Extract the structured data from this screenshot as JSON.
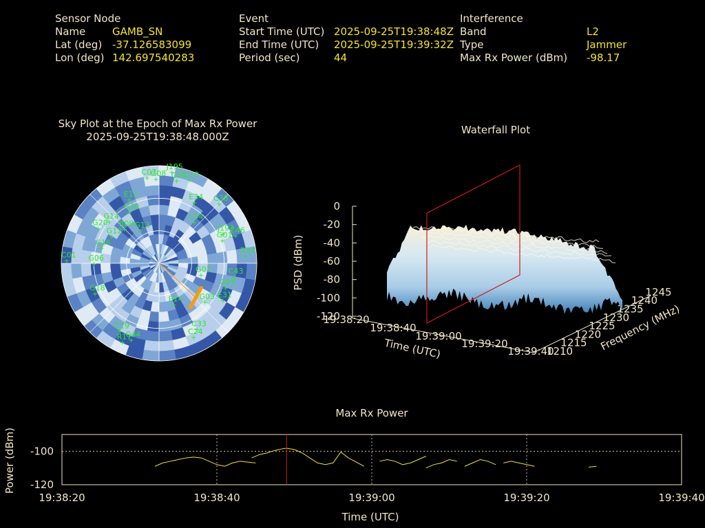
{
  "header": {
    "sensor": {
      "heading": "Sensor Node",
      "name_label": "Name",
      "name": "GAMB_SN",
      "lat_label": "Lat (deg)",
      "lat": "-37.126583099",
      "lon_label": "Lon (deg)",
      "lon": "142.697540283"
    },
    "event": {
      "heading": "Event",
      "start_label": "Start Time (UTC)",
      "start": "2025-09-25T19:38:48Z",
      "end_label": "End Time (UTC)",
      "end": "2025-09-25T19:39:32Z",
      "period_label": "Period (sec)",
      "period": "44"
    },
    "interference": {
      "heading": "Interference",
      "band_label": "Band",
      "band": "L2",
      "type_label": "Type",
      "type": "Jammer",
      "power_label": "Max Rx Power (dBm)",
      "power": "-98.17"
    }
  },
  "skyplot": {
    "title": "Sky Plot at the Epoch of Max Rx Power",
    "subtitle": "2025-09-25T19:38:48.000Z",
    "colors": {
      "heat_light": "#dfeaf5",
      "heat_mid": "#7fa7d6",
      "heat_dark": "#3557a8",
      "sat": "#2ee82e",
      "track": "#ff9a00"
    },
    "satellites": [
      {
        "id": "J195",
        "az": 8,
        "el": 5
      },
      {
        "id": "C07",
        "az": 352,
        "el": 10
      },
      {
        "id": "G08",
        "az": 358,
        "el": 12
      },
      {
        "id": "C08",
        "az": 12,
        "el": 12
      },
      {
        "id": "C10",
        "az": 20,
        "el": 8
      },
      {
        "id": "E11",
        "az": 335,
        "el": 25
      },
      {
        "id": "G30",
        "az": 330,
        "el": 35
      },
      {
        "id": "E34",
        "az": 30,
        "el": 25
      },
      {
        "id": "C38",
        "az": 45,
        "el": 12
      },
      {
        "id": "G14",
        "az": 310,
        "el": 30
      },
      {
        "id": "C34",
        "az": 40,
        "el": 40
      },
      {
        "id": "G20",
        "az": 300,
        "el": 25
      },
      {
        "id": "R09",
        "az": 315,
        "el": 45
      },
      {
        "id": "J193",
        "az": 65,
        "el": 25
      },
      {
        "id": "G01",
        "az": 70,
        "el": 28
      },
      {
        "id": "C46",
        "az": 70,
        "el": 15
      },
      {
        "id": "R24",
        "az": 85,
        "el": 10
      },
      {
        "id": "G12",
        "az": 300,
        "el": 40
      },
      {
        "id": "C16",
        "az": 285,
        "el": 35
      },
      {
        "id": "C01",
        "az": 272,
        "el": 5
      },
      {
        "id": "G06",
        "az": 270,
        "el": 30
      },
      {
        "id": "G13",
        "az": 330,
        "el": 55
      },
      {
        "id": "G07",
        "az": 105,
        "el": 50
      },
      {
        "id": "C43",
        "az": 100,
        "el": 20
      },
      {
        "id": "G09",
        "az": 110,
        "el": 25
      },
      {
        "id": "G18",
        "az": 245,
        "el": 25
      },
      {
        "id": "C19",
        "az": 210,
        "el": 18
      },
      {
        "id": "R17",
        "az": 205,
        "el": 10
      },
      {
        "id": "C44",
        "az": 200,
        "el": 15
      },
      {
        "id": "E14",
        "az": 160,
        "el": 50
      },
      {
        "id": "G03",
        "az": 130,
        "el": 35
      },
      {
        "id": "E31",
        "az": 120,
        "el": 22
      },
      {
        "id": "C33",
        "az": 150,
        "el": 20
      },
      {
        "id": "C24",
        "az": 155,
        "el": 15
      }
    ],
    "track": {
      "az_start": 120,
      "el_start": 45,
      "az_end": 145,
      "el_end": 40
    }
  },
  "waterfall": {
    "title": "Waterfall Plot",
    "zlabel": "PSD (dBm)",
    "xlabel": "Time (UTC)",
    "ylabel": "Frequency (MHz)",
    "zticks": [
      "0",
      "-20",
      "-40",
      "-60",
      "-80",
      "-100",
      "-120"
    ],
    "xticks": [
      "19:38:20",
      "19:38:40",
      "19:39:00",
      "19:39:20",
      "19:39:40"
    ],
    "yticks": [
      "1210",
      "1215",
      "1220",
      "1225",
      "1230",
      "1235",
      "1240",
      "1245"
    ],
    "colors": {
      "surface_top": "#f7f0d6",
      "surface_mid": "#a9cce6",
      "surface_low": "#3e7fb8",
      "marker": "#d01818"
    }
  },
  "chart_data": {
    "type": "line",
    "title": "Max Rx Power",
    "xlabel": "Time (UTC)",
    "ylabel": "Power (dBm)",
    "xticks": [
      "19:38:20",
      "19:38:40",
      "19:39:00",
      "19:39:20",
      "19:39:40"
    ],
    "yticks": [
      "-100",
      "-120"
    ],
    "xlim": [
      0,
      80
    ],
    "ylim": [
      -120,
      -90
    ],
    "grid": true,
    "marker_time": 29,
    "line_color": "#f5e42a",
    "marker_color": "#d01818",
    "segments": [
      [
        [
          12,
          -109
        ],
        [
          13,
          -107
        ],
        [
          14,
          -106
        ],
        [
          15,
          -105
        ],
        [
          16,
          -104
        ],
        [
          17,
          -103.5
        ],
        [
          18,
          -104
        ],
        [
          19,
          -106
        ],
        [
          20,
          -108
        ],
        [
          21,
          -109
        ],
        [
          22,
          -107
        ],
        [
          23,
          -106
        ],
        [
          24,
          -106.5
        ],
        [
          25,
          -107
        ]
      ],
      [
        [
          24.5,
          -104
        ],
        [
          25.5,
          -102
        ],
        [
          26.5,
          -101
        ],
        [
          27.5,
          -99.5
        ],
        [
          28.5,
          -98.5
        ],
        [
          29,
          -98.2
        ],
        [
          30,
          -99
        ],
        [
          31,
          -101
        ],
        [
          32,
          -104
        ],
        [
          33,
          -107
        ],
        [
          34,
          -108
        ],
        [
          35,
          -107
        ],
        [
          36,
          -100.5
        ],
        [
          37,
          -104
        ],
        [
          38,
          -106.5
        ],
        [
          39,
          -109
        ]
      ],
      [
        [
          41,
          -106
        ],
        [
          42,
          -105
        ],
        [
          43,
          -106
        ],
        [
          44,
          -108
        ],
        [
          45,
          -107
        ],
        [
          46,
          -105
        ],
        [
          47,
          -103
        ]
      ],
      [
        [
          47,
          -110
        ],
        [
          48,
          -108
        ],
        [
          49,
          -107
        ],
        [
          50,
          -105
        ],
        [
          51,
          -106
        ]
      ],
      [
        [
          52,
          -109
        ],
        [
          53,
          -107
        ],
        [
          54,
          -105
        ],
        [
          55,
          -106
        ],
        [
          56,
          -108
        ]
      ],
      [
        [
          57,
          -107
        ],
        [
          58,
          -106
        ],
        [
          59,
          -107
        ],
        [
          60,
          -108
        ],
        [
          61,
          -109
        ]
      ],
      [
        [
          68,
          -109.5
        ],
        [
          69,
          -109
        ]
      ]
    ]
  }
}
